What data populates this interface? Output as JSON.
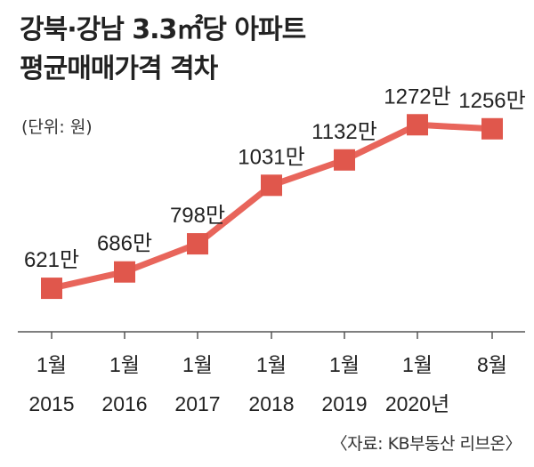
{
  "title_lines": [
    "강북·강남 3.3㎡당 아파트",
    "평균매매가격 격차"
  ],
  "unit_note": "(단위: 원)",
  "source_note": "〈자료: KB부동산 리브온〉",
  "colors": {
    "line": "#e8655b",
    "marker": "#e0574c",
    "axis": "#555555",
    "text": "#222222"
  },
  "chart_data": {
    "type": "line",
    "x_labels": [
      [
        "1월",
        "2015"
      ],
      [
        "1월",
        "2016"
      ],
      [
        "1월",
        "2017"
      ],
      [
        "1월",
        "2018"
      ],
      [
        "1월",
        "2019"
      ],
      [
        "1월",
        "2020년"
      ],
      [
        "8월",
        ""
      ]
    ],
    "values": [
      621,
      686,
      798,
      1031,
      1132,
      1272,
      1256
    ],
    "value_labels": [
      "621만",
      "686만",
      "798만",
      "1031만",
      "1132만",
      "1272만",
      "1256만"
    ],
    "ylim": [
      600,
      1280
    ],
    "grid": false,
    "legend": "none"
  }
}
